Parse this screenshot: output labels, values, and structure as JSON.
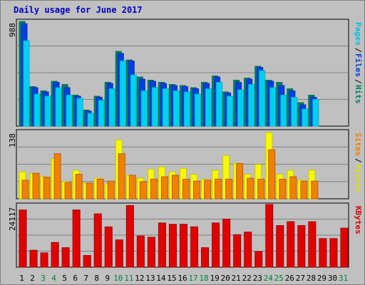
{
  "title": "Daily usage for June 2017",
  "colors": {
    "hits": "#007f5f",
    "files": "#0040e0",
    "pages": "#00d0f0",
    "visits": "#f8f800",
    "sites": "#f08000",
    "kbytes": "#e00000",
    "weekend_day": "#008040",
    "weekday": "#000000"
  },
  "chart_data": [
    {
      "type": "bar",
      "panel": "hits-files-pages",
      "ymax_label": "988",
      "legend": [
        {
          "label": "Pages",
          "color": "#00c0e0"
        },
        {
          "label": "/",
          "color": "#000000"
        },
        {
          "label": "Files",
          "color": "#0040e0"
        },
        {
          "label": "/",
          "color": "#000000"
        },
        {
          "label": "Hits",
          "color": "#008060"
        }
      ],
      "ylim": [
        0,
        988
      ],
      "series": [
        {
          "name": "Hits",
          "values": [
            980,
            370,
            330,
            420,
            390,
            290,
            150,
            280,
            410,
            700,
            620,
            460,
            430,
            410,
            390,
            380,
            360,
            410,
            470,
            320,
            430,
            450,
            560,
            430,
            410,
            350,
            220,
            290,
            0,
            0,
            0
          ]
        },
        {
          "name": "Files",
          "values": [
            960,
            360,
            320,
            410,
            360,
            280,
            140,
            270,
            400,
            680,
            610,
            440,
            420,
            400,
            380,
            370,
            350,
            400,
            460,
            310,
            410,
            440,
            550,
            420,
            380,
            330,
            200,
            270,
            0,
            0,
            0
          ]
        },
        {
          "name": "Pages",
          "values": [
            800,
            300,
            280,
            360,
            290,
            260,
            120,
            240,
            350,
            610,
            480,
            330,
            360,
            350,
            330,
            320,
            300,
            350,
            410,
            280,
            340,
            390,
            520,
            360,
            290,
            270,
            160,
            250,
            0,
            0,
            0
          ]
        }
      ]
    },
    {
      "type": "bar",
      "panel": "visits-sites",
      "ymax_label": "138",
      "legend": [
        {
          "label": "Sites",
          "color": "#f08000"
        },
        {
          "label": "/",
          "color": "#000000"
        },
        {
          "label": "Visits",
          "color": "#e0e000"
        }
      ],
      "ylim": [
        0,
        138
      ],
      "series": [
        {
          "name": "Visits",
          "values": [
            55,
            52,
            45,
            82,
            35,
            58,
            32,
            42,
            30,
            120,
            48,
            42,
            60,
            65,
            55,
            62,
            50,
            40,
            58,
            88,
            72,
            50,
            70,
            135,
            50,
            58,
            38,
            58,
            0,
            0,
            0
          ]
        },
        {
          "name": "Sites",
          "values": [
            38,
            52,
            44,
            92,
            33,
            50,
            32,
            40,
            36,
            92,
            48,
            35,
            40,
            45,
            48,
            40,
            36,
            38,
            40,
            40,
            72,
            42,
            40,
            100,
            40,
            45,
            36,
            36,
            0,
            0,
            0
          ]
        }
      ]
    },
    {
      "type": "bar",
      "panel": "kbytes",
      "ymax_label": "24117",
      "legend": [
        {
          "label": "KBytes",
          "color": "#e00000"
        }
      ],
      "ylim": [
        0,
        24117
      ],
      "series": [
        {
          "name": "KBytes",
          "values": [
            22000,
            6500,
            5500,
            9500,
            7500,
            22000,
            4500,
            20500,
            15500,
            10500,
            23700,
            12000,
            11500,
            17000,
            16500,
            16500,
            15500,
            7500,
            17000,
            18500,
            12500,
            13500,
            6000,
            24100,
            16000,
            17500,
            16000,
            17500,
            11000,
            11000,
            15000
          ]
        }
      ]
    }
  ],
  "x_axis": {
    "days": [
      "1",
      "2",
      "3",
      "4",
      "5",
      "6",
      "7",
      "8",
      "9",
      "10",
      "11",
      "12",
      "13",
      "14",
      "15",
      "16",
      "17",
      "18",
      "19",
      "20",
      "21",
      "22",
      "23",
      "24",
      "25",
      "26",
      "27",
      "28",
      "29",
      "30",
      "31"
    ],
    "weekend_days": [
      "3",
      "4",
      "10",
      "11",
      "17",
      "18",
      "24",
      "25",
      "31"
    ]
  }
}
